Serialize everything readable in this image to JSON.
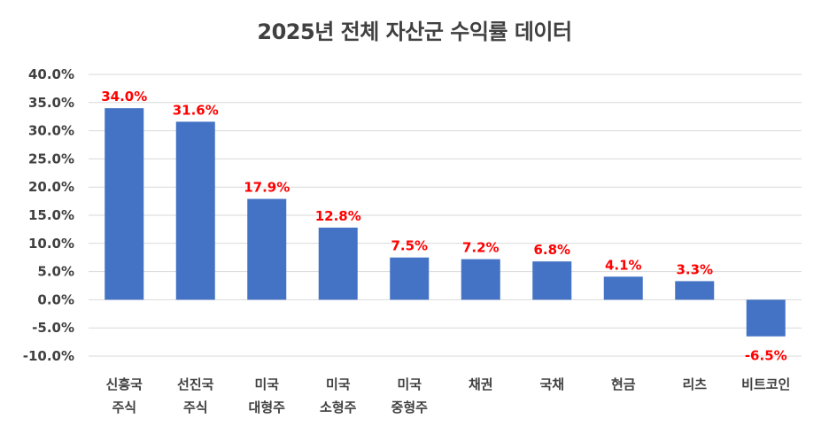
{
  "chart_data": {
    "type": "bar",
    "title": "2025년 전체 자산군 수익률 데이터",
    "categories": [
      [
        "신흥국",
        "주식"
      ],
      [
        "선진국",
        "주식"
      ],
      [
        "미국",
        "대형주"
      ],
      [
        "미국",
        "소형주"
      ],
      [
        "미국",
        "중형주"
      ],
      [
        "채권"
      ],
      [
        "국채"
      ],
      [
        "현금"
      ],
      [
        "리츠"
      ],
      [
        "비트코인"
      ]
    ],
    "values": [
      34.0,
      31.6,
      17.9,
      12.8,
      7.5,
      7.2,
      6.8,
      4.1,
      3.3,
      -6.5
    ],
    "data_labels": [
      "34.0%",
      "31.6%",
      "17.9%",
      "12.8%",
      "7.5%",
      "7.2%",
      "6.8%",
      "4.1%",
      "3.3%",
      "-6.5%"
    ],
    "y_ticks": [
      "40.0%",
      "35.0%",
      "30.0%",
      "25.0%",
      "20.0%",
      "15.0%",
      "10.0%",
      "5.0%",
      "0.0%",
      "-5.0%",
      "-10.0%"
    ],
    "ylim": [
      -10,
      40
    ],
    "grid": true,
    "bar_color": "#4472c4",
    "label_color": "#ff0000"
  }
}
